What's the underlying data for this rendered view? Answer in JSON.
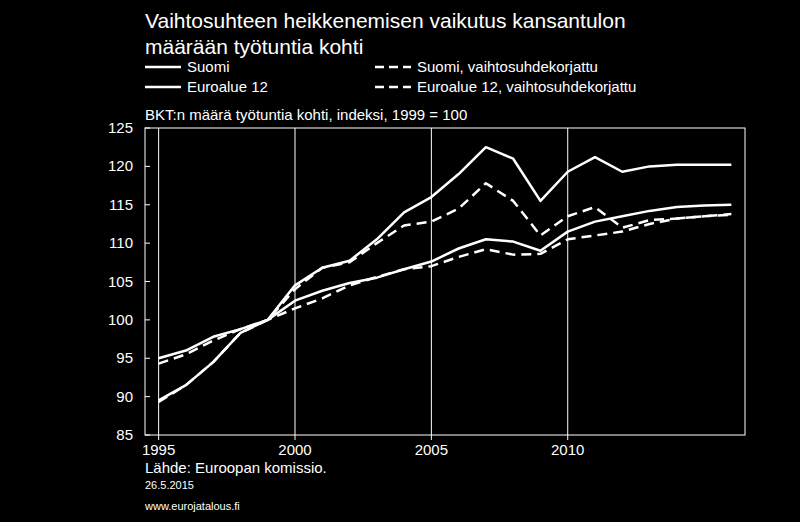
{
  "chart_data": {
    "type": "line",
    "title": "Vaihtosuhteen heikkenemisen vaikutus kansantulon\nmäärään työtuntia kohti",
    "subtitle": "BKT:n määrä työtuntia kohti, indeksi, 1999 = 100",
    "annotations": [
      "Lähde: Euroopan komissio.",
      "26.5.2015",
      "www.eurojatalous.fi"
    ],
    "x": [
      1995,
      1996,
      1997,
      1998,
      1999,
      2000,
      2001,
      2002,
      2003,
      2004,
      2005,
      2006,
      2007,
      2008,
      2009,
      2010,
      2011,
      2012,
      2013,
      2014,
      2015,
      2016
    ],
    "series": [
      {
        "name": "Suomi",
        "color": "#ffffff",
        "line_style": "solid",
        "values": [
          89.5,
          91.5,
          94.5,
          98.3,
          100,
          104.5,
          106.8,
          107.7,
          110.5,
          114,
          116,
          119,
          122.5,
          121,
          115.5,
          119.3,
          121.2,
          119.3,
          120,
          120.2,
          120.2,
          120.2
        ]
      },
      {
        "name": "Suomi, vaihtosuhdekorjattu",
        "color": "#ffffff",
        "line_style": "dashed",
        "values": [
          89.3,
          91.5,
          94.5,
          98.3,
          100,
          104,
          106.8,
          107.5,
          110,
          112.3,
          112.8,
          114.5,
          117.8,
          115.5,
          111,
          113.5,
          114.7,
          112,
          113,
          113.2,
          113.5,
          113.7
        ]
      },
      {
        "name": "Euroalue 12",
        "color": "#ffffff",
        "line_style": "solid",
        "values": [
          95,
          96,
          97.8,
          98.8,
          100,
          102.5,
          103.8,
          104.8,
          105.5,
          106.6,
          107.6,
          109.3,
          110.5,
          110.2,
          109,
          111.5,
          112.8,
          113.5,
          114.2,
          114.7,
          114.9,
          115
        ]
      },
      {
        "name": "Euroalue 12, vaihtosuhdekorjattu",
        "color": "#ffffff",
        "line_style": "dashed",
        "values": [
          94.3,
          95.5,
          97.3,
          98.8,
          100,
          101.5,
          102.8,
          104.5,
          105.6,
          106.6,
          107,
          108.2,
          109.2,
          108.5,
          108.6,
          110.5,
          111,
          111.5,
          112.5,
          113.2,
          113.5,
          113.8
        ]
      }
    ],
    "xlim": [
      1994.5,
      2016.5
    ],
    "xticks": [
      1995,
      2000,
      2005,
      2010
    ],
    "ylim": [
      85,
      125
    ],
    "yticks": [
      85,
      90,
      95,
      100,
      105,
      110,
      115,
      120,
      125
    ],
    "grid": true,
    "legend": "top"
  }
}
